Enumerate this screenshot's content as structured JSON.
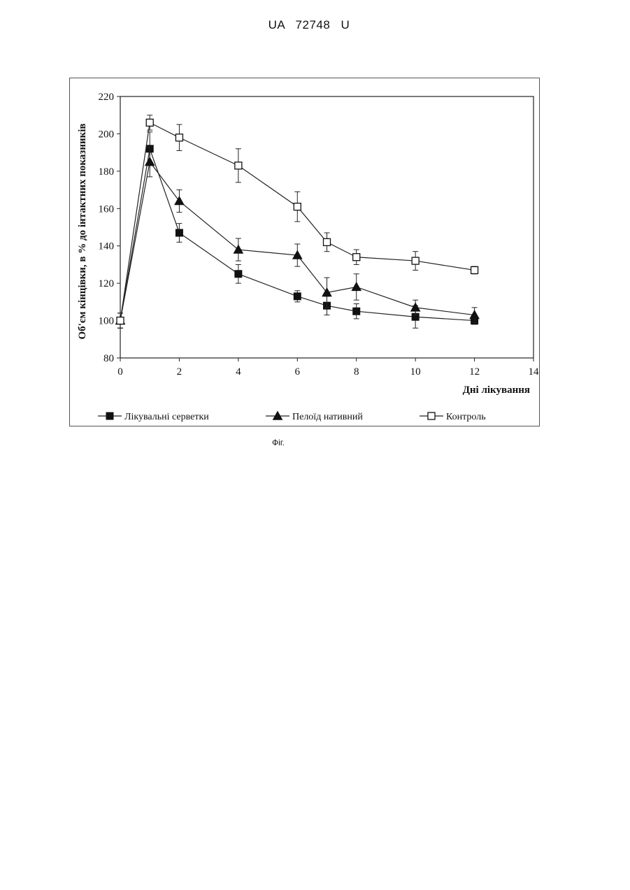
{
  "document": {
    "header": "UA 72748 U",
    "caption": "Фіг."
  },
  "chart_data": {
    "type": "line",
    "title": "",
    "xlabel": "Дні лікування",
    "ylabel": "Об'єм кінцівки, в % до інтактних показників",
    "xlim": [
      0,
      14
    ],
    "ylim": [
      80,
      220
    ],
    "xticks": [
      0,
      2,
      4,
      6,
      8,
      10,
      12,
      14
    ],
    "yticks": [
      80,
      100,
      120,
      140,
      160,
      180,
      200,
      220
    ],
    "grid": false,
    "legend_position": "bottom",
    "series": [
      {
        "name": "Лікувальні серветки",
        "marker": "filled-square",
        "x": [
          0,
          1,
          2,
          4,
          6,
          7,
          8,
          10,
          12
        ],
        "y": [
          100,
          192,
          147,
          125,
          113,
          108,
          105,
          102,
          100
        ],
        "err": [
          4,
          9,
          5,
          5,
          3,
          5,
          4,
          6,
          2
        ]
      },
      {
        "name": "Пелоїд нативний",
        "marker": "filled-triangle",
        "x": [
          0,
          1,
          2,
          4,
          6,
          7,
          8,
          10,
          12
        ],
        "y": [
          100,
          185,
          164,
          138,
          135,
          115,
          118,
          107,
          103
        ],
        "err": [
          4,
          8,
          6,
          6,
          6,
          8,
          7,
          4,
          4
        ]
      },
      {
        "name": "Контроль",
        "marker": "open-square",
        "x": [
          0,
          1,
          2,
          4,
          6,
          7,
          8,
          10,
          12
        ],
        "y": [
          100,
          206,
          198,
          183,
          161,
          142,
          134,
          132,
          127
        ],
        "err": [
          4,
          4,
          7,
          9,
          8,
          5,
          4,
          5,
          2
        ]
      }
    ]
  }
}
